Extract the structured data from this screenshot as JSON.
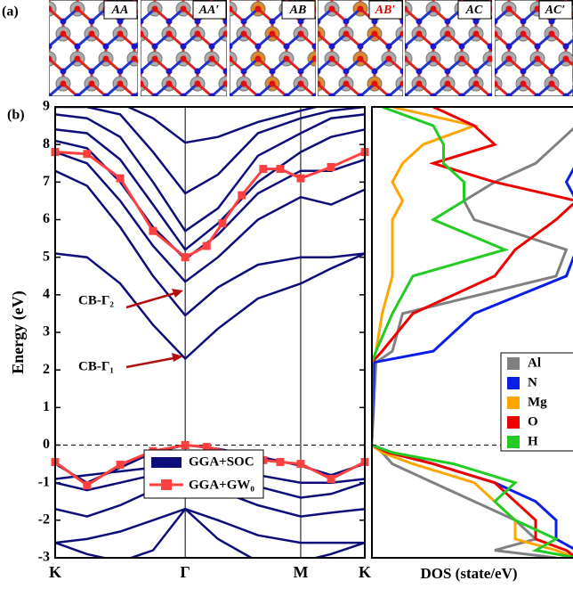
{
  "panel_a": {
    "label": "(a)",
    "structures": [
      {
        "label": "AA",
        "color": "#000000"
      },
      {
        "label": "AA′",
        "color": "#000000"
      },
      {
        "label": "AB",
        "color": "#000000"
      },
      {
        "label": "AB′",
        "color": "#e00000"
      },
      {
        "label": "AC",
        "color": "#000000"
      },
      {
        "label": "AC′",
        "color": "#000000"
      }
    ]
  },
  "chart_data": [
    {
      "type": "line",
      "panel_label": "(b)",
      "ylabel": "Energy (eV)",
      "xlim": [
        0,
        1
      ],
      "ylim": [
        -3,
        9
      ],
      "yticks": [
        -3,
        -2,
        -1,
        0,
        1,
        2,
        3,
        4,
        5,
        6,
        7,
        8,
        9
      ],
      "xticks": [
        {
          "value": 0,
          "label": "K"
        },
        {
          "value": 0.42,
          "label": "Γ"
        },
        {
          "value": 0.793,
          "label": "M"
        },
        {
          "value": 1,
          "label": "K"
        }
      ],
      "fermi_level": 0,
      "series": [
        {
          "name": "GGA+SOC",
          "color": "#0d0d7a",
          "x": [
            0,
            0.103,
            0.21,
            0.316,
            0.42,
            0.526,
            0.655,
            0.793,
            0.891,
            1
          ],
          "bands": [
            [
              5.1,
              5.0,
              4.3,
              3.2,
              2.3,
              3.1,
              3.9,
              4.3,
              4.7,
              5.1
            ],
            [
              7.3,
              6.9,
              5.8,
              4.5,
              3.45,
              4.2,
              4.8,
              5.0,
              5.0,
              5.1
            ],
            [
              7.8,
              7.5,
              6.5,
              5.3,
              4.35,
              5.0,
              6.0,
              6.6,
              6.4,
              6.8
            ],
            [
              8.1,
              7.9,
              7.0,
              5.8,
              4.95,
              5.6,
              6.7,
              7.3,
              7.3,
              7.6
            ],
            [
              8.4,
              8.3,
              7.6,
              6.4,
              5.2,
              5.9,
              7.0,
              7.8,
              8.2,
              8.4
            ],
            [
              8.8,
              8.7,
              8.2,
              7.0,
              5.7,
              6.3,
              7.7,
              8.3,
              8.7,
              8.8
            ],
            [
              9.0,
              9.0,
              8.8,
              7.8,
              6.7,
              7.2,
              8.3,
              8.7,
              8.9,
              9.0
            ],
            [
              9.1,
              9.1,
              9.1,
              8.7,
              8.05,
              8.2,
              8.6,
              8.9,
              9.1,
              9.1
            ],
            [
              -0.5,
              -1.0,
              -0.6,
              -0.2,
              0,
              -0.1,
              -0.3,
              -0.55,
              -0.8,
              -0.5
            ],
            [
              -0.9,
              -0.8,
              -0.7,
              -0.6,
              -0.55,
              -0.6,
              -0.8,
              -1.0,
              -1.0,
              -0.9
            ],
            [
              -1.0,
              -1.2,
              -1.0,
              -0.8,
              -0.6,
              -0.8,
              -1.1,
              -1.4,
              -1.3,
              -1.0
            ],
            [
              -1.7,
              -1.9,
              -1.6,
              -1.2,
              -0.6,
              -1.2,
              -1.6,
              -1.9,
              -1.8,
              -1.7
            ],
            [
              -2.6,
              -2.5,
              -2.3,
              -2.0,
              -1.7,
              -2.0,
              -2.4,
              -2.6,
              -2.6,
              -2.6
            ],
            [
              -2.6,
              -2.9,
              -3.1,
              -2.8,
              -1.7,
              -2.5,
              -3.1,
              -3.1,
              -2.9,
              -2.6
            ]
          ]
        },
        {
          "name": "GGA+GW₀",
          "color": "#ff4040",
          "x": [
            0,
            0.103,
            0.21,
            0.316,
            0.42,
            0.489,
            0.598,
            0.672,
            0.727,
            0.793,
            0.891,
            1,
            null,
            0,
            0.103,
            0.21,
            0.316,
            0.42,
            0.489,
            0.54,
            0.603,
            0.672,
            0.727,
            0.793,
            0.891,
            1
          ],
          "values": [
            -0.45,
            -1.07,
            -0.52,
            -0.16,
            0,
            -0.05,
            -0.25,
            -0.4,
            -0.45,
            -0.5,
            -0.9,
            -0.45,
            null,
            7.8,
            7.75,
            7.1,
            5.7,
            5.0,
            5.3,
            5.9,
            6.65,
            7.35,
            7.35,
            7.1,
            7.4,
            7.8
          ]
        }
      ],
      "annotations": [
        "CB-Γ₂",
        "CB-Γ₁"
      ]
    },
    {
      "type": "line",
      "orientation": "horizontal",
      "xlabel": "DOS (state/eV)",
      "xlim": [
        0,
        1
      ],
      "ylim": [
        -3,
        9
      ],
      "fermi_level": 0,
      "legend": "right",
      "energy": [
        -3,
        -2.8,
        -2.5,
        -2,
        -1.5,
        -1,
        -0.5,
        -0.2,
        0,
        0.1,
        2.2,
        2.5,
        3.5,
        4.5,
        5.2,
        6,
        6.5,
        7,
        7.5,
        8,
        8.5,
        9
      ],
      "series": [
        {
          "name": "Al",
          "color": "#808080",
          "values": [
            0.9,
            0.6,
            0.8,
            0.7,
            0.5,
            0.3,
            0.1,
            0.05,
            0,
            0,
            0.02,
            0.1,
            0.15,
            0.9,
            0.95,
            0.5,
            0.45,
            0.6,
            0.8,
            0.9,
            1.0,
            1.0
          ]
        },
        {
          "name": "N",
          "color": "#0a1ee6",
          "values": [
            1.0,
            1.0,
            0.9,
            0.9,
            0.8,
            0.6,
            0.3,
            0.1,
            0,
            0,
            0.01,
            0.3,
            0.5,
            0.95,
            1.0,
            1.0,
            1.0,
            0.95,
            1.0,
            1.0,
            1.0,
            1.0
          ]
        },
        {
          "name": "Mg",
          "color": "#ffa500",
          "values": [
            1.0,
            0.9,
            0.7,
            0.7,
            0.6,
            0.5,
            0.2,
            0.05,
            0,
            0,
            0.0,
            0.02,
            0.05,
            0.1,
            0.1,
            0.1,
            0.15,
            0.1,
            0.15,
            0.25,
            0.5,
            0.1
          ]
        },
        {
          "name": "O",
          "color": "#ee0000",
          "values": [
            1.0,
            0.95,
            0.8,
            0.8,
            0.7,
            0.6,
            0.3,
            0.08,
            0,
            0,
            0.0,
            0.05,
            0.2,
            0.6,
            0.7,
            0.9,
            1.0,
            0.6,
            0.3,
            0.6,
            0.5,
            0.3
          ]
        },
        {
          "name": "H",
          "color": "#22cc22",
          "values": [
            1.0,
            0.8,
            0.9,
            0.7,
            0.6,
            0.7,
            0.4,
            0.1,
            0,
            0,
            0.0,
            0.02,
            0.1,
            0.2,
            0.65,
            0.3,
            0.45,
            0.45,
            0.35,
            0.35,
            0.3,
            0.05
          ]
        }
      ]
    }
  ]
}
